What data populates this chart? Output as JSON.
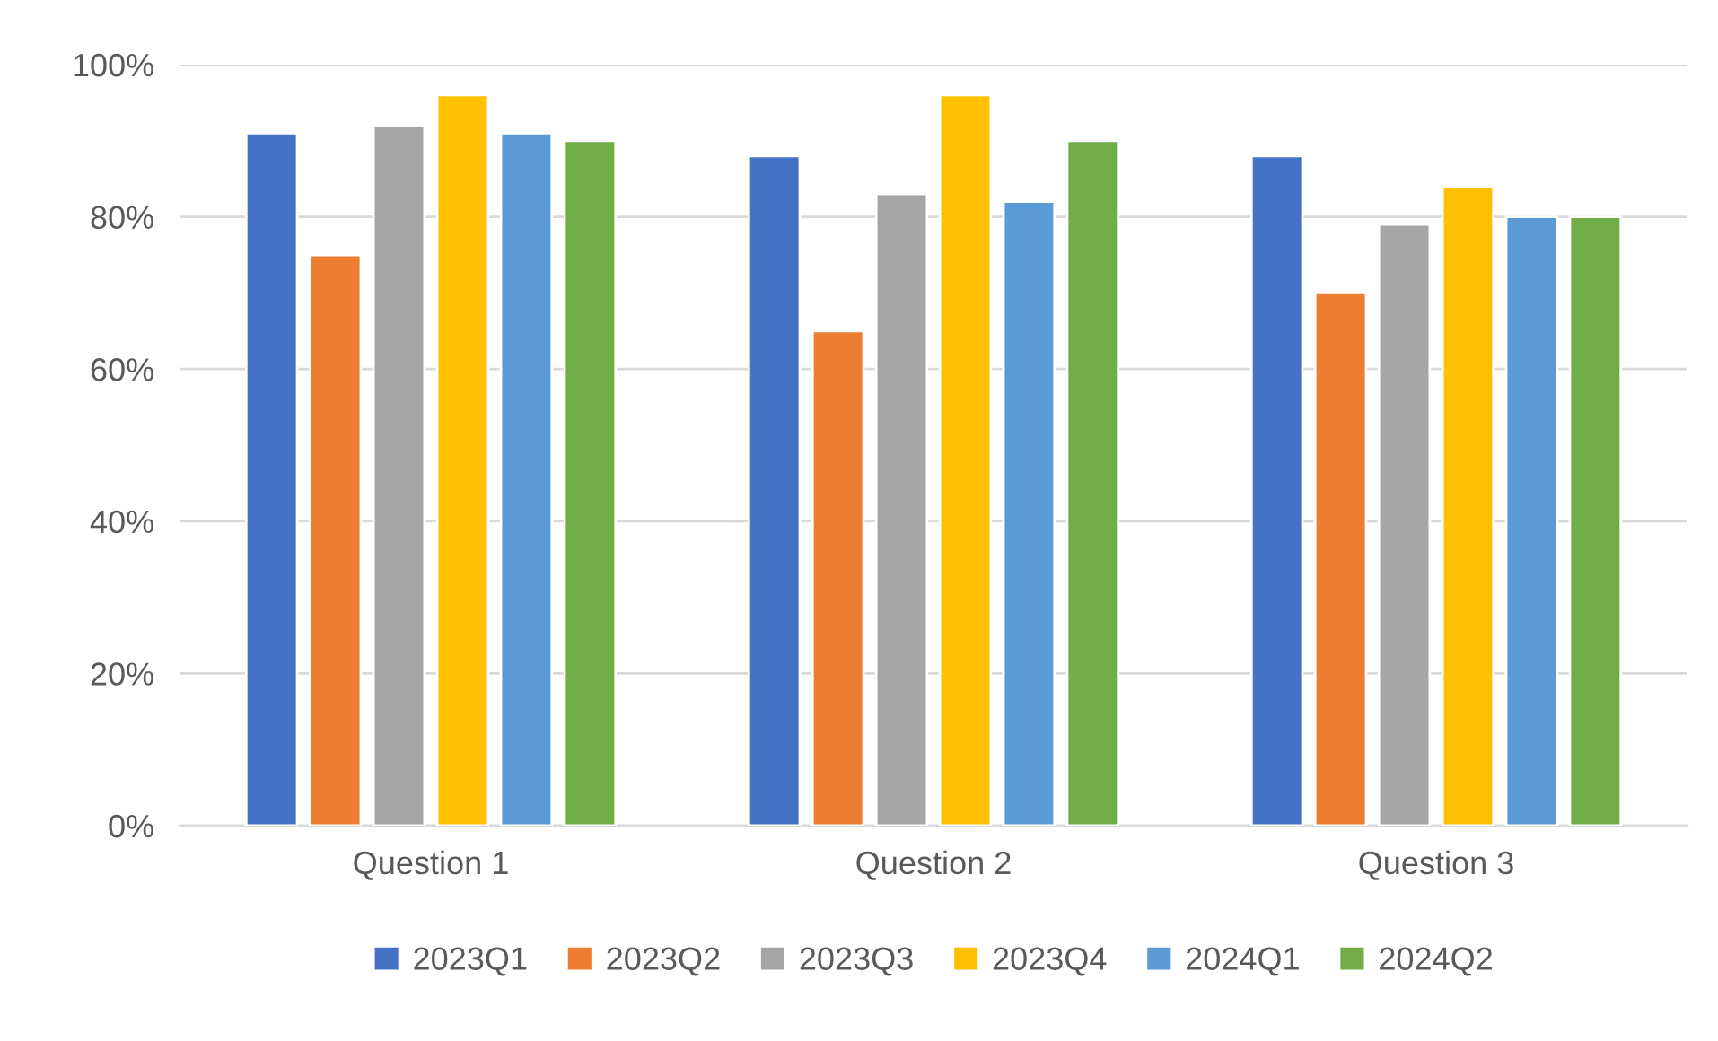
{
  "chart_data": {
    "type": "bar",
    "categories": [
      "Question 1",
      "Question 2",
      "Question 3"
    ],
    "series": [
      {
        "name": "2023Q1",
        "color": "#4472c4",
        "values": [
          91,
          88,
          88
        ]
      },
      {
        "name": "2023Q2",
        "color": "#ed7d31",
        "values": [
          75,
          65,
          70
        ]
      },
      {
        "name": "2023Q3",
        "color": "#a5a5a5",
        "values": [
          92,
          83,
          79
        ]
      },
      {
        "name": "2023Q4",
        "color": "#ffc000",
        "values": [
          96,
          96,
          84
        ]
      },
      {
        "name": "2024Q1",
        "color": "#5b9bd5",
        "values": [
          91,
          82,
          80
        ]
      },
      {
        "name": "2024Q2",
        "color": "#70ad47",
        "values": [
          90,
          90,
          80
        ]
      }
    ],
    "ylim": [
      0,
      100
    ],
    "yticks": [
      {
        "value": 0,
        "label": "0%"
      },
      {
        "value": 20,
        "label": "20%"
      },
      {
        "value": 40,
        "label": "40%"
      },
      {
        "value": 60,
        "label": "60%"
      },
      {
        "value": 80,
        "label": "80%"
      },
      {
        "value": 100,
        "label": "100%"
      }
    ],
    "grid": "y",
    "legend": "bottom"
  }
}
